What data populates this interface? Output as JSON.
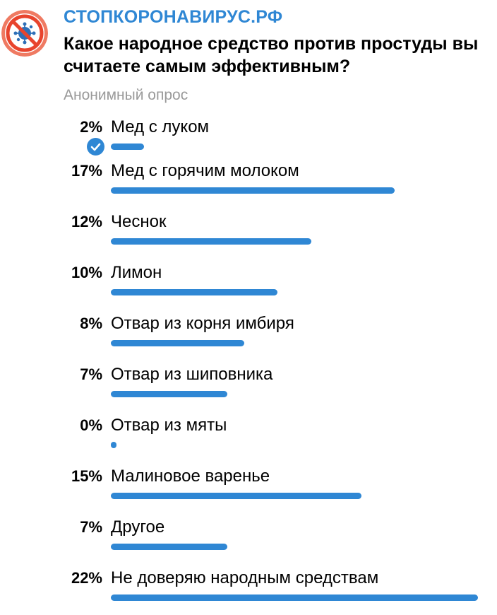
{
  "channel": {
    "name": "СТОПКОРОНАВИРУС.РФ",
    "avatar_icon": "stop-coronavirus-logo"
  },
  "poll": {
    "question": "Какое народное средство против простуды вы считаете самым эффективным?",
    "type_label": "Анонимный опрос",
    "accent_color": "#2f87d4",
    "options": [
      {
        "percent": "2%",
        "value": 2,
        "label": "Мед с луком",
        "selected": true
      },
      {
        "percent": "17%",
        "value": 17,
        "label": "Мед с горячим молоком",
        "selected": false
      },
      {
        "percent": "12%",
        "value": 12,
        "label": "Чеснок",
        "selected": false
      },
      {
        "percent": "10%",
        "value": 10,
        "label": "Лимон",
        "selected": false
      },
      {
        "percent": "8%",
        "value": 8,
        "label": "Отвар из корня имбиря",
        "selected": false
      },
      {
        "percent": "7%",
        "value": 7,
        "label": "Отвар из шиповника",
        "selected": false
      },
      {
        "percent": "0%",
        "value": 0,
        "label": "Отвар из мяты",
        "selected": false
      },
      {
        "percent": "15%",
        "value": 15,
        "label": "Малиновое варенье",
        "selected": false
      },
      {
        "percent": "7%",
        "value": 7,
        "label": "Другое",
        "selected": false
      },
      {
        "percent": "22%",
        "value": 22,
        "label": "Не доверяю народным средствам",
        "selected": false
      }
    ]
  }
}
